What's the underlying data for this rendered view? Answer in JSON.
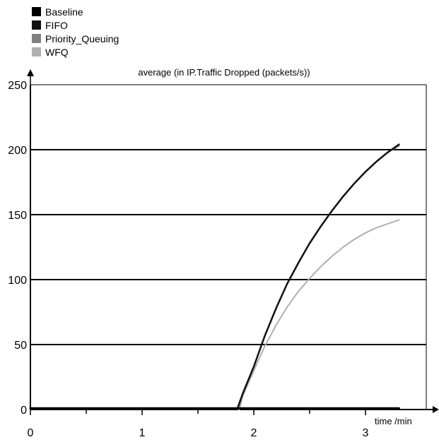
{
  "chart_data": {
    "type": "line",
    "title": "average (in IP.Traffic Dropped (packets/s))",
    "xlabel": "time /min",
    "ylabel": "",
    "xlim": [
      0,
      3.5
    ],
    "ylim": [
      0,
      250
    ],
    "x_ticks": [
      "0",
      "1",
      "2",
      "3"
    ],
    "y_ticks": [
      "0",
      "50",
      "100",
      "150",
      "200",
      "250"
    ],
    "grid": "horizontal",
    "legend_position": "top-left",
    "series": [
      {
        "name": "Baseline",
        "color": "#000000",
        "x": [
          0,
          1,
          2,
          3.3
        ],
        "y": [
          1,
          1,
          1,
          1
        ]
      },
      {
        "name": "FIFO",
        "color": "#111111",
        "x": [
          1.85,
          1.9,
          2.0,
          2.1,
          2.2,
          2.3,
          2.4,
          2.5,
          2.6,
          2.7,
          2.8,
          2.9,
          3.0,
          3.1,
          3.2,
          3.3
        ],
        "y": [
          0,
          12,
          33,
          57,
          78,
          97,
          113,
          128,
          141,
          153,
          164,
          174,
          183,
          191,
          198,
          204
        ]
      },
      {
        "name": "Priority_Queuing",
        "color": "#808080",
        "x": [
          1.86,
          1.9,
          2.0,
          2.1,
          2.2,
          2.3,
          2.4,
          2.5,
          2.6,
          2.7,
          2.8,
          2.9,
          3.0,
          3.1,
          3.2,
          3.3
        ],
        "y": [
          0,
          12,
          33,
          57,
          78,
          97,
          113,
          128,
          141,
          153,
          164,
          174,
          183,
          191,
          198,
          203
        ]
      },
      {
        "name": "WFQ",
        "color": "#b0b0b0",
        "x": [
          1.87,
          1.9,
          2.0,
          2.1,
          2.2,
          2.3,
          2.4,
          2.5,
          2.6,
          2.7,
          2.8,
          2.9,
          3.0,
          3.1,
          3.2,
          3.3
        ],
        "y": [
          0,
          10,
          30,
          49,
          65,
          79,
          91,
          101,
          110,
          118,
          125,
          131,
          136,
          140,
          143,
          146
        ]
      }
    ]
  }
}
